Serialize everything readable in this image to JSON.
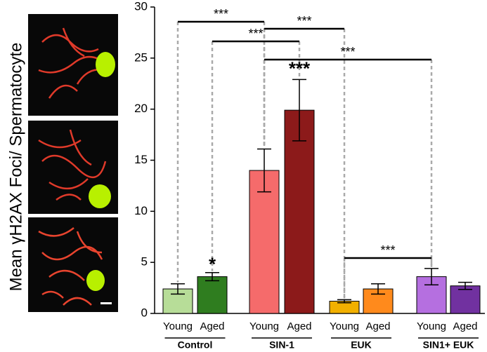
{
  "chart_data": {
    "type": "bar",
    "y_label": "Mean γH2AX Foci/ Spermatocyte",
    "categories": [
      "Young",
      "Aged",
      "Young",
      "Aged",
      "Young",
      "Aged",
      "Young",
      "Aged"
    ],
    "groups": [
      "Control",
      "SIN-1",
      "EUK",
      "SIN1+ EUK"
    ],
    "values": [
      2.4,
      3.6,
      14,
      19.9,
      1.2,
      2.4,
      3.6,
      2.7
    ],
    "errors": [
      0.5,
      0.4,
      2.1,
      3.0,
      0.15,
      0.5,
      0.8,
      0.35
    ],
    "colors": [
      "#b7dd98",
      "#2f7d1f",
      "#f56b6b",
      "#8c1a1a",
      "#f2b000",
      "#ff8a1c",
      "#b56fe0",
      "#7131a0"
    ],
    "ylim": [
      0,
      30
    ],
    "yticks": [
      0,
      5,
      10,
      15,
      20,
      25,
      30
    ],
    "annotations": [
      "***",
      "***",
      "***",
      "***",
      "***",
      "***",
      "*"
    ]
  }
}
